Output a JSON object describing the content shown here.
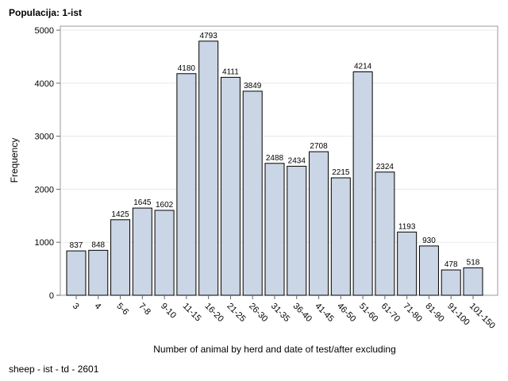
{
  "chart_data": {
    "type": "bar",
    "title": "Populacija: 1-ist",
    "xlabel": "Number of animal by herd and date of test/after excluding",
    "ylabel": "Frequency",
    "footnote": "sheep - ist - td - 2601",
    "categories": [
      "3",
      "4",
      "5-6",
      "7-8",
      "9-10",
      "11-15",
      "16-20",
      "21-25",
      "26-30",
      "31-35",
      "36-40",
      "41-45",
      "46-50",
      "51-60",
      "61-70",
      "71-80",
      "81-90",
      "91-100",
      "101-150"
    ],
    "values": [
      837,
      848,
      1425,
      1645,
      1602,
      4180,
      4793,
      4111,
      3849,
      2488,
      2434,
      2708,
      2215,
      4214,
      2324,
      1193,
      930,
      478,
      518
    ],
    "ylim": [
      0,
      5000
    ],
    "yticks": [
      0,
      1000,
      2000,
      3000,
      4000,
      5000
    ],
    "grid": true,
    "legend": "none",
    "colors": {
      "bar_fill": "#CAD5E5",
      "bar_stroke": "#000000",
      "grid": "#E8E8E8",
      "frame": "#999999"
    }
  }
}
